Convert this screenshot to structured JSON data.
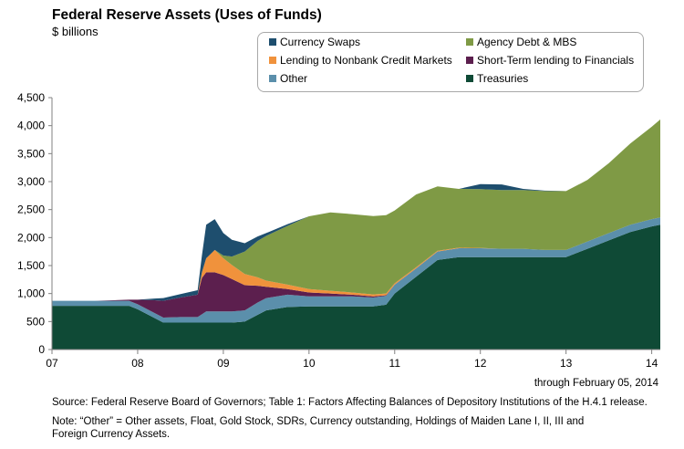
{
  "chart_data": {
    "type": "area",
    "title": "Federal Reserve Assets (Uses of Funds)",
    "subtitle": "$ billions",
    "x_tick_labels": [
      "07",
      "08",
      "09",
      "10",
      "11",
      "12",
      "13",
      "14"
    ],
    "y_tick_labels": [
      "0",
      "500",
      "1,000",
      "1,500",
      "2,000",
      "2,500",
      "3,000",
      "3,500",
      "4,000",
      "4,500"
    ],
    "ylim": [
      0,
      4500
    ],
    "xlim": [
      2007.0,
      2014.1
    ],
    "stacked": true,
    "legend_position": "top-right",
    "legend": [
      {
        "label": "Currency Swaps",
        "color": "#1e4e6e"
      },
      {
        "label": "Agency Debt & MBS",
        "color": "#7f9a45"
      },
      {
        "label": "Lending to Nonbank Credit Markets",
        "color": "#f0923c"
      },
      {
        "label": "Short-Term lending to Financials",
        "color": "#5c1f4e"
      },
      {
        "label": "Other",
        "color": "#5b8fab"
      },
      {
        "label": "Treasuries",
        "color": "#0f4a36"
      }
    ],
    "x": [
      2007.0,
      2007.5,
      2007.9,
      2008.0,
      2008.2,
      2008.3,
      2008.5,
      2008.7,
      2008.75,
      2008.8,
      2008.9,
      2009.0,
      2009.1,
      2009.25,
      2009.4,
      2009.5,
      2009.75,
      2010.0,
      2010.25,
      2010.5,
      2010.75,
      2010.9,
      2011.0,
      2011.25,
      2011.5,
      2011.75,
      2012.0,
      2012.25,
      2012.5,
      2012.75,
      2012.9,
      2013.0,
      2013.25,
      2013.5,
      2013.75,
      2014.0,
      2014.1
    ],
    "series": [
      {
        "name": "Treasuries",
        "color": "#0f4a36",
        "values": [
          780,
          780,
          780,
          720,
          560,
          480,
          480,
          480,
          480,
          480,
          480,
          480,
          480,
          500,
          620,
          700,
          760,
          770,
          770,
          770,
          770,
          800,
          1000,
          1300,
          1600,
          1650,
          1650,
          1650,
          1650,
          1650,
          1650,
          1650,
          1800,
          1950,
          2100,
          2200,
          2230
        ]
      },
      {
        "name": "Other",
        "color": "#5b8fab",
        "values": [
          90,
          90,
          90,
          90,
          90,
          90,
          100,
          100,
          150,
          200,
          200,
          200,
          200,
          200,
          220,
          220,
          220,
          180,
          180,
          180,
          160,
          160,
          160,
          150,
          150,
          160,
          160,
          150,
          150,
          130,
          130,
          130,
          130,
          130,
          130,
          130,
          130
        ]
      },
      {
        "name": "Short-Term lending to Financials",
        "color": "#5c1f4e",
        "values": [
          0,
          0,
          20,
          80,
          230,
          300,
          350,
          400,
          650,
          700,
          700,
          650,
          580,
          450,
          300,
          200,
          100,
          70,
          50,
          30,
          20,
          10,
          0,
          0,
          0,
          0,
          0,
          0,
          0,
          0,
          0,
          0,
          0,
          0,
          0,
          0,
          0
        ]
      },
      {
        "name": "Lending to Nonbank Credit Markets",
        "color": "#f0923c",
        "values": [
          0,
          0,
          0,
          0,
          0,
          0,
          0,
          0,
          100,
          250,
          400,
          300,
          250,
          200,
          150,
          110,
          80,
          60,
          50,
          40,
          35,
          30,
          25,
          20,
          15,
          10,
          5,
          0,
          0,
          0,
          0,
          0,
          0,
          0,
          0,
          0,
          0
        ]
      },
      {
        "name": "Agency Debt & MBS",
        "color": "#7f9a45",
        "values": [
          0,
          0,
          0,
          0,
          0,
          0,
          0,
          0,
          0,
          0,
          0,
          50,
          150,
          400,
          650,
          800,
          1050,
          1300,
          1400,
          1400,
          1400,
          1400,
          1300,
          1300,
          1150,
          1050,
          1050,
          1050,
          1050,
          1050,
          1050,
          1050,
          1100,
          1250,
          1450,
          1650,
          1750
        ]
      },
      {
        "name": "Currency Swaps",
        "color": "#1e4e6e",
        "values": [
          0,
          0,
          0,
          0,
          30,
          50,
          60,
          80,
          300,
          600,
          550,
          400,
          300,
          150,
          80,
          50,
          30,
          0,
          0,
          0,
          0,
          0,
          0,
          0,
          0,
          0,
          90,
          100,
          20,
          10,
          5,
          0,
          0,
          0,
          0,
          0,
          0
        ]
      }
    ]
  },
  "footer": {
    "through": "through February 05, 2014",
    "source": "Source: Federal Reserve Board of Governors; Table 1: Factors Affecting Balances of Depository Institutions of the H.4.1 release.",
    "note": "Note: “Other” = Other assets, Float, Gold Stock, SDRs, Currency outstanding, Holdings of Maiden Lane I, II, III and Foreign Currency Assets."
  }
}
